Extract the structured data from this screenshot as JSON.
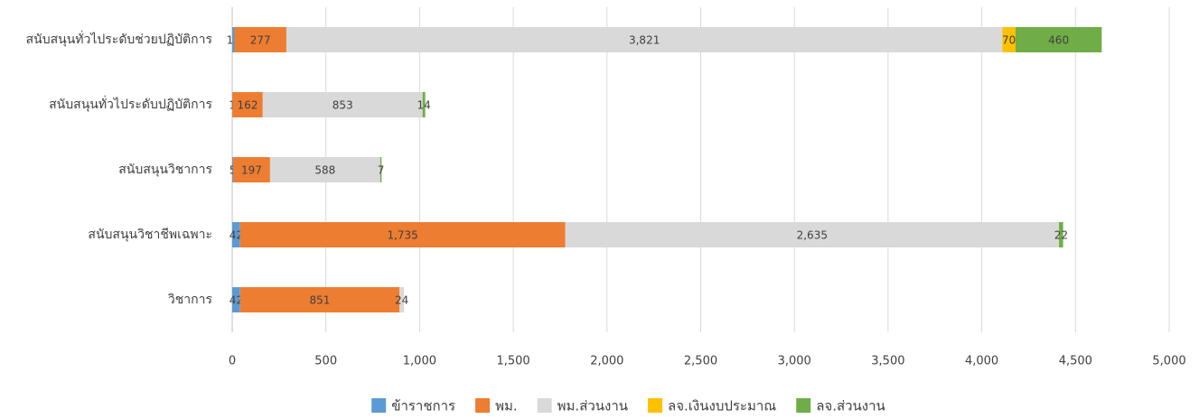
{
  "chart_data": {
    "type": "stacked-barh",
    "categories": [
      "สนับสนุนทั่วไประดับช่วยปฏิบัติการ",
      "สนับสนุนทั่วไประดับปฏิบัติการ",
      "สนับสนุนวิชาการ",
      "สนับสนุนวิชาชีพเฉพาะ",
      "วิชาการ"
    ],
    "series": [
      {
        "name": "ข้าราชการ",
        "color": "#5b9bd5",
        "values": [
          12,
          1,
          5,
          42,
          42
        ]
      },
      {
        "name": "พม.",
        "color": "#ed7d31",
        "values": [
          277,
          162,
          197,
          1735,
          851
        ],
        "value_labels": [
          "277",
          "162",
          "197",
          "1,735",
          "851"
        ]
      },
      {
        "name": "พม.ส่วนงาน",
        "color": "#d9d9d9",
        "values": [
          3821,
          853,
          588,
          2635,
          24
        ],
        "value_labels": [
          "3,821",
          "853",
          "588",
          "2,635",
          "24"
        ]
      },
      {
        "name": "ลจ.เงินงบประมาณ",
        "color": "#ffc000",
        "values": [
          70,
          null,
          null,
          null,
          null
        ]
      },
      {
        "name": "ลจ.ส่วนงาน",
        "color": "#70ad47",
        "values": [
          460,
          14,
          7,
          22,
          null
        ]
      }
    ],
    "xlim": [
      0,
      5000
    ],
    "xticks": [
      0,
      500,
      {
        "value": 1000,
        "label": "1,000"
      },
      {
        "value": 1500,
        "label": "1,500"
      },
      {
        "value": 2000,
        "label": "2,000"
      },
      {
        "value": 2500,
        "label": "2,500"
      },
      {
        "value": 3000,
        "label": "3,000"
      },
      {
        "value": 3500,
        "label": "3,500"
      },
      {
        "value": 4000,
        "label": "4,000"
      },
      {
        "value": 4500,
        "label": "4,500"
      },
      {
        "value": 5000,
        "label": "5,000"
      }
    ],
    "grid": true,
    "legend": "bottom"
  }
}
